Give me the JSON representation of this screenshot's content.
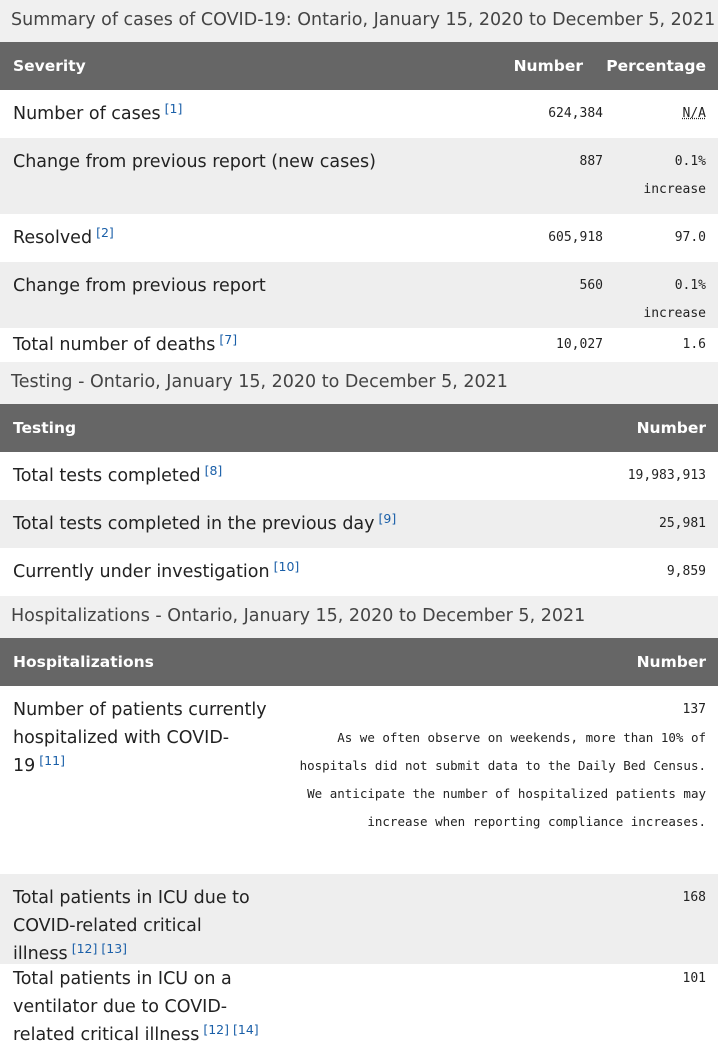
{
  "tables": [
    {
      "caption": "Summary of cases of COVID-19: Ontario, January 15, 2020 to December 5, 2021",
      "headers": [
        "Severity",
        "Number",
        "Percentage"
      ],
      "rows": [
        {
          "label": "Number of cases",
          "refs": [
            "[1]"
          ],
          "number": "624,384",
          "percentage": "N/A"
        },
        {
          "label": "Change from previous report (new cases)",
          "refs": [],
          "number": "887",
          "percentage": "0.1% increase"
        },
        {
          "label": "Resolved",
          "refs": [
            "[2]"
          ],
          "number": "605,918",
          "percentage": "97.0"
        },
        {
          "label": "Change from previous report",
          "refs": [],
          "number": "560",
          "percentage": "0.1% increase"
        },
        {
          "label": "Total number of deaths",
          "refs": [
            "[7]"
          ],
          "number": "10,027",
          "percentage": "1.6"
        }
      ]
    },
    {
      "caption": "Testing - Ontario, January 15, 2020 to December 5, 2021",
      "headers": [
        "Testing",
        "Number"
      ],
      "rows": [
        {
          "label": "Total tests completed",
          "refs": [
            "[8]"
          ],
          "number": "19,983,913"
        },
        {
          "label": "Total tests completed in the previous day",
          "refs": [
            "[9]"
          ],
          "number": "25,981"
        },
        {
          "label": "Currently under investigation",
          "refs": [
            "[10]"
          ],
          "number": "9,859"
        }
      ]
    },
    {
      "caption": "Hospitalizations - Ontario, January 15, 2020 to December 5, 2021",
      "headers": [
        "Hospitalizations",
        "Number"
      ],
      "rows": [
        {
          "label": "Number of patients currently hospitalized with COVID-19",
          "refs": [
            "[11]"
          ],
          "number": "137",
          "note": "As we often observe on weekends, more than 10% of hospitals did not submit data to the Daily Bed Census. We anticipate the number of hospitalized patients may increase when reporting compliance increases."
        },
        {
          "label": "Total patients in ICU due to COVID-related critical illness",
          "refs": [
            "[12]",
            "[13]"
          ],
          "number": "168"
        },
        {
          "label": "Total patients in ICU on a ventilator due to COVID-related critical illness",
          "refs": [
            "[12]",
            "[14]"
          ],
          "number": "101"
        }
      ]
    }
  ]
}
